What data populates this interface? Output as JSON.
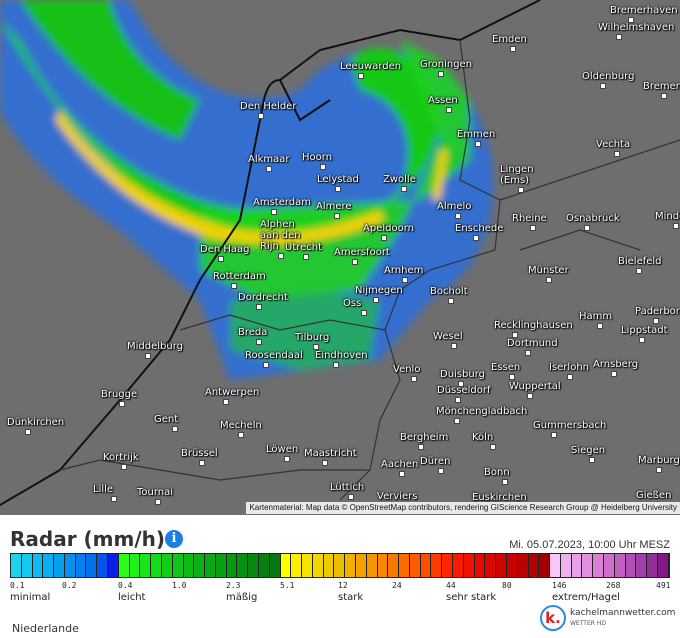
{
  "map": {
    "attribution": "Kartenmaterial: Map data © OpenStreetMap contributors, rendering GIScience Research Group @ Heidelberg University",
    "cities": [
      "Bremerhaven",
      "Wilhelmshaven",
      "Emden",
      "Leeuwarden",
      "Groningen",
      "Oldenburg",
      "Bremen",
      "Den Helder",
      "Assen",
      "Emmen",
      "Vechta",
      "Alkmaar",
      "Hoorn",
      "Lingen\n(Ems)",
      "Lelystad",
      "Zwolle",
      "Amsterdam",
      "Almere",
      "Almelo",
      "Rheine",
      "Osnabrück",
      "Minden",
      "Alphen\naan den\nRijn",
      "Apeldoorn",
      "Enschede",
      "Den Haag",
      "Utrecht",
      "Amersfoort",
      "Bielefeld",
      "Rotterdam",
      "Arnhem",
      "Münster",
      "Dordrecht",
      "Nijmegen",
      "Bocholt",
      "Oss",
      "Paderborn",
      "Breda",
      "Tilburg",
      "Recklinghausen",
      "Hamm",
      "Lippstadt",
      "Middelburg",
      "Roosendaal",
      "Eindhoven",
      "Dortmund",
      "Wesel",
      "Venlo",
      "Duisburg",
      "Essen",
      "Iserlohn",
      "Arnsberg",
      "Brugge",
      "Antwerpen",
      "Düsseldorf",
      "Wuppertal",
      "Mönchengladbach",
      "Dünkirchen",
      "Gent",
      "Mecheln",
      "Gummersbach",
      "Bergheim",
      "Köln",
      "Siegen",
      "Kortrijk",
      "Brüssel",
      "Löwen",
      "Maastricht",
      "Düren",
      "Aachen",
      "Bonn",
      "Marburg",
      "Lille",
      "Tournai",
      "Lüttich",
      "Verviers",
      "Euskirchen",
      "Gießen"
    ]
  },
  "legend": {
    "title": "Radar (mm/h)",
    "info_icon": "info-icon",
    "timestamp": "Mi. 05.07.2023, 10:00 Uhr MESZ",
    "colors": [
      "#19d4ef",
      "#14c8f0",
      "#10bbef",
      "#0aaff0",
      "#079fee",
      "#0590ee",
      "#0580ee",
      "#0570ee",
      "#0555ea",
      "#0a1ee6",
      "#2aff1a",
      "#1ef21a",
      "#18e61a",
      "#15da18",
      "#12ce18",
      "#10c418",
      "#0eba16",
      "#0cb016",
      "#0aa814",
      "#0aa014",
      "#099812",
      "#089012",
      "#088812",
      "#078010",
      "#06780f",
      "#ffff00",
      "#fcee00",
      "#f7e200",
      "#f2d600",
      "#edca00",
      "#e9be00",
      "#f2b000",
      "#f5a200",
      "#f79400",
      "#f98600",
      "#fb7800",
      "#fc6a00",
      "#fd5c00",
      "#fe4e00",
      "#ff3a00",
      "#ff2600",
      "#f81a00",
      "#ee1200",
      "#e40c00",
      "#da0800",
      "#d00500",
      "#c60300",
      "#bb0200",
      "#b00000",
      "#a20000",
      "#f9c8f6",
      "#f0b0ee",
      "#e8a0e6",
      "#e090de",
      "#d880d6",
      "#cc70cc",
      "#c060c2",
      "#b050b6",
      "#a040aa",
      "#903098",
      "#801888"
    ],
    "ticks": [
      "0.1",
      "0.2",
      "0.4",
      "1.0",
      "2.3",
      "5.1",
      "12",
      "24",
      "44",
      "80",
      "146",
      "268",
      "491"
    ],
    "categories": [
      "minimal",
      "leicht",
      "mäßig",
      "stark",
      "sehr stark",
      "extrem/Hagel"
    ]
  },
  "logo": {
    "name": "kachelmannwetter.com",
    "sub": "WETTER HD",
    "letter": "k."
  },
  "region": "Niederlande"
}
